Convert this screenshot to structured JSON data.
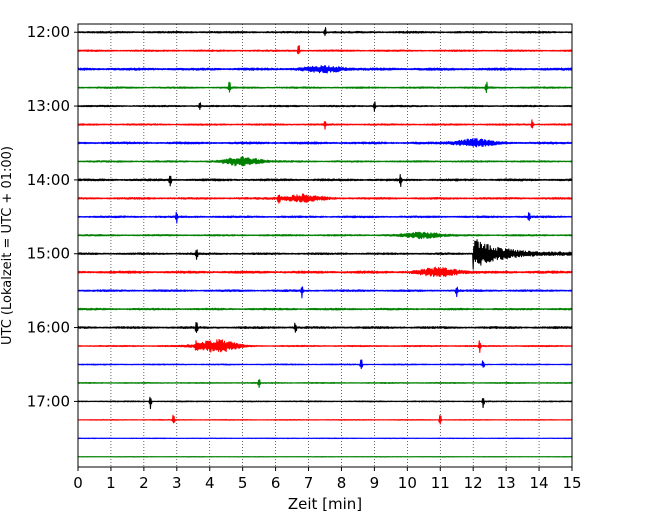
{
  "chart_data": {
    "type": "line",
    "subtype": "helicorder-seismogram",
    "xlabel": "Zeit  [min]",
    "ylabel": "UTC (Lokalzeit = UTC + 01:00)",
    "xlim": [
      0,
      15
    ],
    "x_ticks": [
      "0",
      "1",
      "2",
      "3",
      "4",
      "5",
      "6",
      "7",
      "8",
      "9",
      "10",
      "11",
      "12",
      "13",
      "14",
      "15"
    ],
    "y_tick_labels": [
      "12:00",
      "13:00",
      "14:00",
      "15:00",
      "16:00",
      "17:00"
    ],
    "grid": {
      "x": true,
      "y": false,
      "style": "dotted"
    },
    "trace_colors": [
      "#000000",
      "#ff0000",
      "#0000ff",
      "#008000"
    ],
    "trace_interval_min": 15,
    "traces": [
      {
        "start": "12:00",
        "color": "#000000",
        "noise": 0.35,
        "spikes": [
          7.5
        ],
        "bursts": []
      },
      {
        "start": "12:15",
        "color": "#ff0000",
        "noise": 0.3,
        "spikes": [
          6.7
        ],
        "bursts": []
      },
      {
        "start": "12:30",
        "color": "#0000ff",
        "noise": 0.45,
        "spikes": [],
        "bursts": [
          [
            7.5,
            0.4
          ]
        ]
      },
      {
        "start": "12:45",
        "color": "#008000",
        "noise": 0.3,
        "spikes": [
          4.6,
          12.4
        ],
        "bursts": []
      },
      {
        "start": "13:00",
        "color": "#000000",
        "noise": 0.3,
        "spikes": [
          3.7,
          9.0
        ],
        "bursts": []
      },
      {
        "start": "13:15",
        "color": "#ff0000",
        "noise": 0.3,
        "spikes": [
          7.5,
          13.8
        ],
        "bursts": []
      },
      {
        "start": "13:30",
        "color": "#0000ff",
        "noise": 0.4,
        "spikes": [],
        "bursts": [
          [
            12.0,
            0.5
          ]
        ]
      },
      {
        "start": "13:45",
        "color": "#008000",
        "noise": 0.3,
        "spikes": [],
        "bursts": [
          [
            5.0,
            0.6
          ]
        ]
      },
      {
        "start": "14:00",
        "color": "#000000",
        "noise": 0.4,
        "spikes": [
          2.8,
          9.8
        ],
        "bursts": []
      },
      {
        "start": "14:15",
        "color": "#ff0000",
        "noise": 0.35,
        "spikes": [
          6.1
        ],
        "bursts": [
          [
            6.8,
            0.5
          ]
        ]
      },
      {
        "start": "14:30",
        "color": "#0000ff",
        "noise": 0.35,
        "spikes": [
          3.0,
          13.7
        ],
        "bursts": []
      },
      {
        "start": "14:45",
        "color": "#008000",
        "noise": 0.3,
        "spikes": [],
        "bursts": [
          [
            10.5,
            0.4
          ]
        ]
      },
      {
        "start": "15:00",
        "color": "#000000",
        "noise": 0.35,
        "spikes": [
          3.6
        ],
        "bursts": [],
        "quake": 12.0
      },
      {
        "start": "15:15",
        "color": "#ff0000",
        "noise": 0.45,
        "spikes": [],
        "bursts": [
          [
            11.0,
            0.6
          ]
        ]
      },
      {
        "start": "15:30",
        "color": "#0000ff",
        "noise": 0.35,
        "spikes": [
          6.8,
          11.5
        ],
        "bursts": []
      },
      {
        "start": "15:45",
        "color": "#008000",
        "noise": 0.35,
        "spikes": [],
        "bursts": []
      },
      {
        "start": "16:00",
        "color": "#000000",
        "noise": 0.4,
        "spikes": [
          3.6,
          6.6
        ],
        "bursts": []
      },
      {
        "start": "16:15",
        "color": "#ff0000",
        "noise": 0.25,
        "spikes": [
          3.6,
          12.2
        ],
        "bursts": [
          [
            4.2,
            0.9
          ]
        ]
      },
      {
        "start": "16:30",
        "color": "#0000ff",
        "noise": 0.2,
        "spikes": [
          8.6,
          12.3
        ],
        "bursts": []
      },
      {
        "start": "16:45",
        "color": "#008000",
        "noise": 0.2,
        "spikes": [
          5.5
        ],
        "bursts": []
      },
      {
        "start": "17:00",
        "color": "#000000",
        "noise": 0.2,
        "spikes": [
          2.2,
          12.3
        ],
        "bursts": []
      },
      {
        "start": "17:15",
        "color": "#ff0000",
        "noise": 0.15,
        "spikes": [
          2.9,
          11.0
        ],
        "bursts": []
      },
      {
        "start": "17:30",
        "color": "#0000ff",
        "noise": 0.12,
        "spikes": [],
        "bursts": []
      },
      {
        "start": "17:45",
        "color": "#008000",
        "noise": 0.1,
        "spikes": [],
        "bursts": []
      }
    ]
  }
}
